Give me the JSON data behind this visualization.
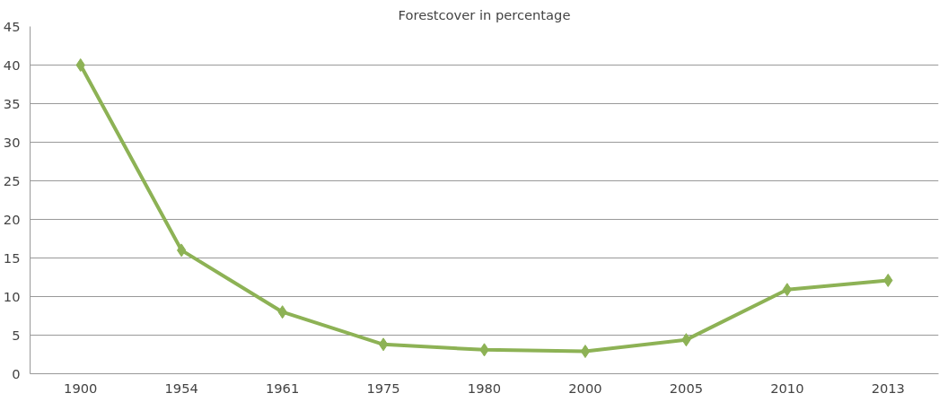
{
  "chart_data": {
    "type": "line",
    "title": "Forestcover in percentage",
    "categories": [
      "1900",
      "1954",
      "1961",
      "1975",
      "1980",
      "2000",
      "2005",
      "2010",
      "2013"
    ],
    "series": [
      {
        "color": "#8db255",
        "values": [
          40,
          16,
          8,
          3.8,
          3.1,
          2.9,
          4.4,
          10.9,
          12.1
        ]
      }
    ],
    "ylim": [
      0,
      45
    ],
    "yticks": [
      0,
      5,
      10,
      15,
      20,
      25,
      30,
      35,
      40,
      45
    ],
    "grid": "y",
    "marker": "diamond",
    "line_style": "solid"
  }
}
